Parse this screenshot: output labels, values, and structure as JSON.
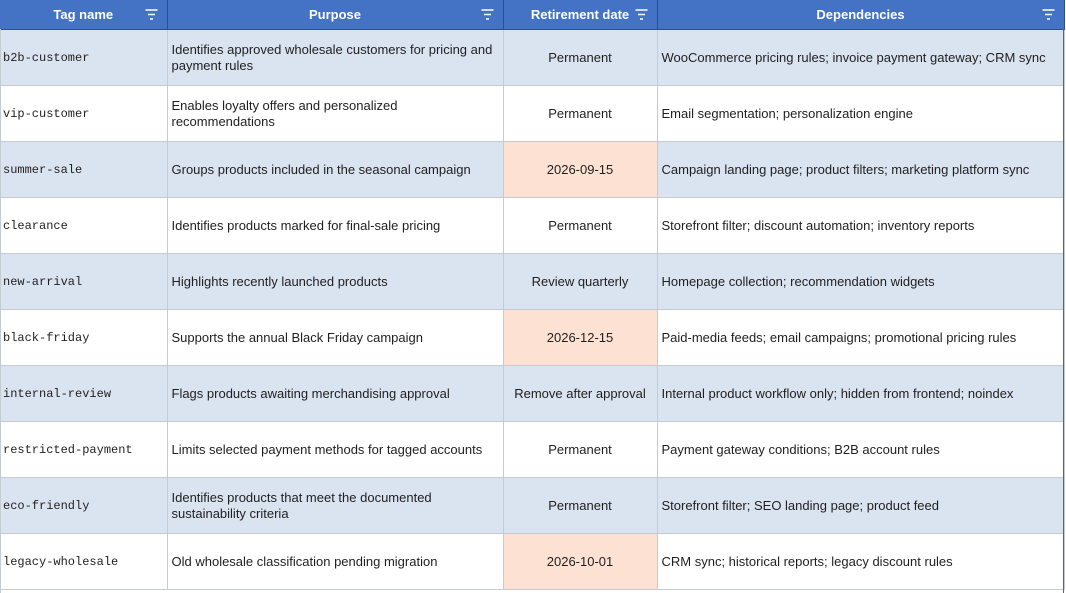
{
  "columns": {
    "tag": "Tag name",
    "purpose": "Purpose",
    "retirement": "Retirement date",
    "dependencies": "Dependencies"
  },
  "icons": {
    "filter": "filter-icon"
  },
  "colors": {
    "header": "#4472c4",
    "band": "#dae3f0",
    "date_flag": "#fde1d2"
  },
  "rows": [
    {
      "tag": "b2b-customer",
      "purpose": "Identifies approved wholesale customers for pricing and payment rules",
      "retirement": "Permanent",
      "dependencies": "WooCommerce pricing rules; invoice payment gateway; CRM sync"
    },
    {
      "tag": "vip-customer",
      "purpose": "Enables loyalty offers and personalized recommendations",
      "retirement": "Permanent",
      "dependencies": "Email segmentation; personalization engine"
    },
    {
      "tag": "summer-sale",
      "purpose": "Groups products included in the seasonal campaign",
      "retirement": "2026-09-15",
      "dependencies": "Campaign landing page; product filters; marketing platform sync"
    },
    {
      "tag": "clearance",
      "purpose": "Identifies products marked for final-sale pricing",
      "retirement": "Permanent",
      "dependencies": "Storefront filter; discount automation; inventory reports"
    },
    {
      "tag": "new-arrival",
      "purpose": "Highlights recently launched products",
      "retirement": "Review quarterly",
      "dependencies": "Homepage collection; recommendation widgets"
    },
    {
      "tag": "black-friday",
      "purpose": "Supports the annual Black Friday campaign",
      "retirement": "2026-12-15",
      "dependencies": "Paid-media feeds; email campaigns; promotional pricing rules"
    },
    {
      "tag": "internal-review",
      "purpose": "Flags products awaiting merchandising approval",
      "retirement": "Remove after approval",
      "dependencies": "Internal product workflow only; hidden from frontend; noindex"
    },
    {
      "tag": "restricted-payment",
      "purpose": "Limits selected payment methods for tagged accounts",
      "retirement": "Permanent",
      "dependencies": "Payment gateway conditions; B2B account rules"
    },
    {
      "tag": "eco-friendly",
      "purpose": "Identifies products that meet the documented sustainability criteria",
      "retirement": "Permanent",
      "dependencies": "Storefront filter; SEO landing page; product feed"
    },
    {
      "tag": "legacy-wholesale",
      "purpose": "Old wholesale classification pending migration",
      "retirement": "2026-10-01",
      "dependencies": "CRM sync; historical reports; legacy discount rules"
    }
  ]
}
